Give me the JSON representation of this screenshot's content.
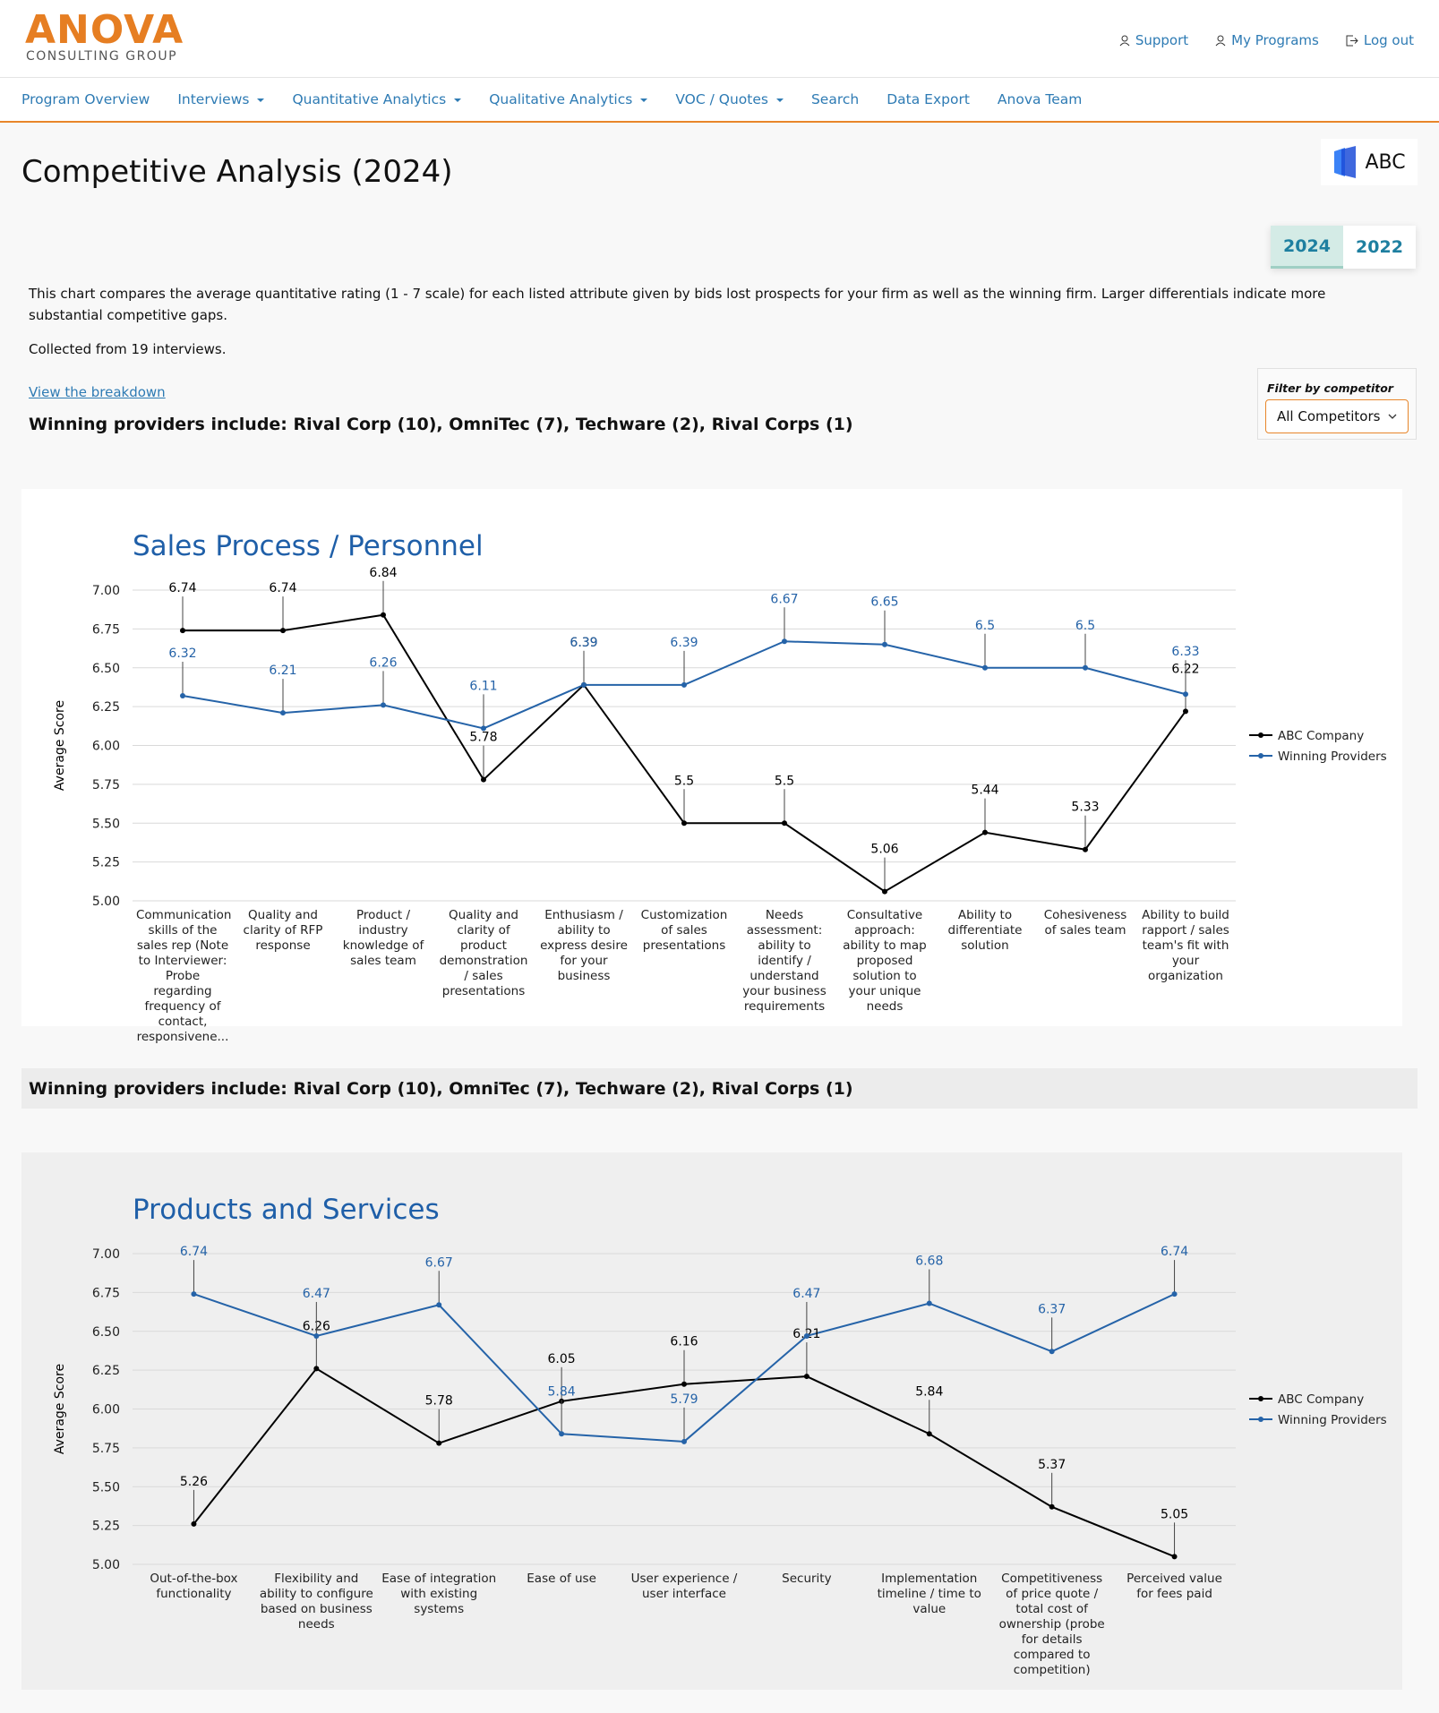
{
  "header": {
    "logo": "ANOVA",
    "logo_sub": "CONSULTING GROUP",
    "links": [
      "Support",
      "My Programs",
      "Log out"
    ]
  },
  "nav": [
    "Program Overview",
    "Interviews",
    "Quantitative Analytics",
    "Qualitative Analytics",
    "VOC / Quotes",
    "Search",
    "Data Export",
    "Anova Team"
  ],
  "page": {
    "title": "Competitive Analysis (2024)",
    "client_logo": "ABC",
    "tabs": [
      "2024",
      "2022"
    ],
    "description": "This chart compares the average quantitative rating (1 - 7 scale) for each listed attribute given by bids lost prospects for your firm as well as the winning firm. Larger differentials indicate more substantial competitive gaps.",
    "collected": "Collected from 19 interviews.",
    "breakdown_link": "View the breakdown",
    "winning_providers": "Winning providers include: Rival Corp (10), OmniTec (7), Techware (2), Rival Corps (1)",
    "filter_label": "Filter by competitor",
    "filter_value": "All Competitors",
    "winning_providers_2": "Winning providers include: Rival Corp (10), OmniTec (7), Techware (2), Rival Corps (1)"
  },
  "chart_data": [
    {
      "type": "line",
      "title": "Sales Process / Personnel",
      "ylabel": "Average Score",
      "categories": [
        "Communication skills of the sales rep (Note to Interviewer: Probe regarding frequency of contact, responsivene...",
        "Quality and clarity of RFP response",
        "Product / industry knowledge of sales team",
        "Quality and clarity of product demonstration / sales presentations",
        "Enthusiasm / ability to express desire for your business",
        "Customization of sales presentations",
        "Needs assessment: ability to identify / understand your business requirements",
        "Consultative approach: ability to map proposed solution to your unique needs",
        "Ability to differentiate solution",
        "Cohesiveness of sales team",
        "Ability to build rapport / sales team's fit with your organization"
      ],
      "series": [
        {
          "name": "ABC Company",
          "color": "#000000",
          "values": [
            6.74,
            6.74,
            6.84,
            5.78,
            6.39,
            5.5,
            5.5,
            5.06,
            5.44,
            5.33,
            6.22
          ]
        },
        {
          "name": "Winning Providers",
          "color": "#2563a8",
          "values": [
            6.32,
            6.21,
            6.26,
            6.11,
            6.39,
            6.39,
            6.67,
            6.65,
            6.5,
            6.5,
            6.33
          ]
        }
      ],
      "ylim": [
        5,
        7
      ],
      "yticks": [
        {
          "value": 5,
          "label": "5.00"
        },
        {
          "value": 5.25,
          "label": "5.25"
        },
        {
          "value": 5.5,
          "label": "5.50"
        },
        {
          "value": 5.75,
          "label": "5.75"
        },
        {
          "value": 6,
          "label": "6.00"
        },
        {
          "value": 6.25,
          "label": "6.25"
        },
        {
          "value": 6.5,
          "label": "6.50"
        },
        {
          "value": 6.75,
          "label": "6.75"
        },
        {
          "value": 7,
          "label": "7.00"
        }
      ],
      "grid": true,
      "legend": "right"
    },
    {
      "type": "line",
      "title": "Products and Services",
      "ylabel": "Average Score",
      "categories": [
        "Out-of-the-box functionality",
        "Flexibility and ability to configure based on business needs",
        "Ease of integration with existing systems",
        "Ease of use",
        "User experience / user interface",
        "Security",
        "Implementation timeline / time to value",
        "Competitiveness of price quote / total cost of ownership (probe for details compared to competition)",
        "Perceived value for fees paid"
      ],
      "series": [
        {
          "name": "ABC Company",
          "color": "#000000",
          "values": [
            5.26,
            6.26,
            5.78,
            6.05,
            6.16,
            6.21,
            5.84,
            5.37,
            5.05
          ]
        },
        {
          "name": "Winning Providers",
          "color": "#2563a8",
          "values": [
            6.74,
            6.47,
            6.67,
            5.84,
            5.79,
            6.47,
            6.68,
            6.37,
            6.74
          ]
        }
      ],
      "ylim": [
        5,
        7
      ],
      "yticks": [
        {
          "value": 5,
          "label": "5.00"
        },
        {
          "value": 5.25,
          "label": "5.25"
        },
        {
          "value": 5.5,
          "label": "5.50"
        },
        {
          "value": 5.75,
          "label": "5.75"
        },
        {
          "value": 6,
          "label": "6.00"
        },
        {
          "value": 6.25,
          "label": "6.25"
        },
        {
          "value": 6.5,
          "label": "6.50"
        },
        {
          "value": 6.75,
          "label": "6.75"
        },
        {
          "value": 7,
          "label": "7.00"
        }
      ],
      "grid": true,
      "legend": "right"
    }
  ]
}
